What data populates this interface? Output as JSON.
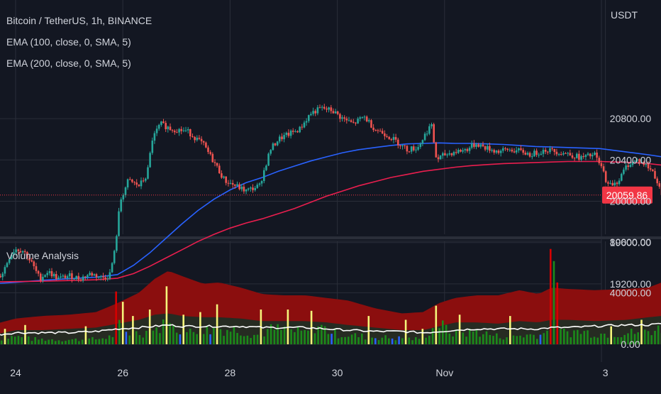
{
  "header": {
    "title": "Bitcoin / TetherUS, 1h, BINANCE",
    "ema100_label": "EMA (100, close, 0, SMA, 5)",
    "ema200_label": "EMA (200, close, 0, SMA, 5)",
    "currency": "USDT"
  },
  "volume_panel": {
    "title": "Volume Analysis"
  },
  "last_price": {
    "value": 20059.86,
    "label": "20059.86",
    "color": "#f23645"
  },
  "colors": {
    "background": "#131722",
    "grid": "#2a2e39",
    "candle_up": "#26a69a",
    "candle_down": "#ef5350",
    "ema100": "#2962ff",
    "ema200": "#e91e4e",
    "volume_green": "#1b8a1b",
    "volume_yellow": "#f5f57a",
    "volume_blue": "#2962ff",
    "volume_red": "#d50000",
    "band_outer": "#8b0e0e",
    "band_inner": "#262b22",
    "volume_average": "#ffffff"
  },
  "chart_data": [
    {
      "type": "candlestick",
      "title": "Bitcoin / TetherUS, 1h, BINANCE",
      "xlabel": "",
      "ylabel": "USDT",
      "x_ticks": [
        "24",
        "26",
        "28",
        "30",
        "Nov",
        "3"
      ],
      "y_ticks": [
        19200,
        19600,
        20000,
        20400,
        20800
      ],
      "y_tick_labels": [
        "19200.00",
        "19600.00",
        "20000.00",
        "20400.00",
        "20800.00"
      ],
      "ylim": [
        19150,
        21100
      ],
      "grid": true,
      "price_path": [
        [
          23.55,
          19190
        ],
        [
          23.75,
          19300
        ],
        [
          23.9,
          19480
        ],
        [
          24.0,
          19540
        ],
        [
          24.15,
          19520
        ],
        [
          24.3,
          19400
        ],
        [
          24.45,
          19250
        ],
        [
          24.6,
          19320
        ],
        [
          24.8,
          19250
        ],
        [
          25.0,
          19280
        ],
        [
          25.2,
          19250
        ],
        [
          25.4,
          19300
        ],
        [
          25.6,
          19260
        ],
        [
          25.75,
          19280
        ],
        [
          25.85,
          19520
        ],
        [
          25.95,
          20000
        ],
        [
          26.1,
          20200
        ],
        [
          26.3,
          20150
        ],
        [
          26.45,
          20250
        ],
        [
          26.55,
          20600
        ],
        [
          26.7,
          20750
        ],
        [
          26.9,
          20700
        ],
        [
          27.2,
          20680
        ],
        [
          27.5,
          20550
        ],
        [
          27.7,
          20380
        ],
        [
          27.9,
          20200
        ],
        [
          28.1,
          20150
        ],
        [
          28.3,
          20100
        ],
        [
          28.55,
          20150
        ],
        [
          28.75,
          20500
        ],
        [
          28.9,
          20600
        ],
        [
          29.1,
          20650
        ],
        [
          29.3,
          20700
        ],
        [
          29.5,
          20850
        ],
        [
          29.7,
          20900
        ],
        [
          29.9,
          20880
        ],
        [
          30.1,
          20800
        ],
        [
          30.3,
          20750
        ],
        [
          30.5,
          20820
        ],
        [
          30.7,
          20700
        ],
        [
          30.9,
          20650
        ],
        [
          31.1,
          20580
        ],
        [
          31.3,
          20500
        ],
        [
          31.5,
          20520
        ],
        [
          31.75,
          20750
        ],
        [
          31.85,
          20400
        ],
        [
          32.0,
          20450
        ],
        [
          32.2,
          20480
        ],
        [
          32.4,
          20500
        ],
        [
          32.6,
          20560
        ],
        [
          32.75,
          20520
        ],
        [
          33.0,
          20480
        ],
        [
          33.2,
          20500
        ],
        [
          33.45,
          20480
        ],
        [
          33.6,
          20450
        ],
        [
          33.9,
          20500
        ],
        [
          34.1,
          20480
        ],
        [
          34.3,
          20460
        ],
        [
          34.55,
          20420
        ],
        [
          34.8,
          20450
        ],
        [
          34.95,
          20300
        ],
        [
          35.05,
          20150
        ],
        [
          35.25,
          20200
        ],
        [
          35.4,
          20350
        ],
        [
          35.6,
          20400
        ],
        [
          35.75,
          20350
        ],
        [
          35.9,
          20280
        ],
        [
          36.05,
          20060
        ]
      ],
      "series": [
        {
          "name": "EMA (100, close, 0, SMA, 5)",
          "color": "#2962ff",
          "x": [
            23.55,
            24.0,
            24.5,
            25.0,
            25.5,
            25.9,
            26.2,
            26.5,
            26.8,
            27.1,
            27.4,
            27.7,
            28.0,
            28.3,
            28.6,
            28.9,
            29.2,
            29.5,
            29.8,
            30.1,
            30.4,
            30.7,
            31.0,
            31.3,
            31.6,
            31.9,
            32.2,
            32.5,
            32.8,
            33.1,
            33.4,
            33.7,
            34.0,
            34.3,
            34.6,
            34.9,
            35.2,
            35.5,
            35.8,
            36.05
          ],
          "y": [
            19200,
            19215,
            19235,
            19250,
            19265,
            19290,
            19380,
            19500,
            19640,
            19780,
            19910,
            20020,
            20110,
            20180,
            20230,
            20290,
            20340,
            20390,
            20430,
            20470,
            20500,
            20520,
            20540,
            20555,
            20560,
            20565,
            20560,
            20560,
            20555,
            20550,
            20540,
            20530,
            20525,
            20520,
            20515,
            20510,
            20490,
            20470,
            20450,
            20430
          ]
        },
        {
          "name": "EMA (200, close, 0, SMA, 5)",
          "color": "#e91e4e",
          "x": [
            23.55,
            24.0,
            24.5,
            25.0,
            25.5,
            25.9,
            26.2,
            26.5,
            26.8,
            27.1,
            27.4,
            27.7,
            28.0,
            28.3,
            28.6,
            28.9,
            29.2,
            29.5,
            29.8,
            30.1,
            30.4,
            30.7,
            31.0,
            31.3,
            31.6,
            31.9,
            32.2,
            32.5,
            32.8,
            33.1,
            33.4,
            33.7,
            34.0,
            34.3,
            34.6,
            34.9,
            35.2,
            35.5,
            35.8,
            36.05
          ],
          "y": [
            19220,
            19222,
            19226,
            19232,
            19240,
            19255,
            19300,
            19370,
            19450,
            19530,
            19610,
            19680,
            19740,
            19790,
            19830,
            19880,
            19930,
            19990,
            20050,
            20100,
            20150,
            20190,
            20230,
            20260,
            20290,
            20310,
            20330,
            20345,
            20355,
            20365,
            20370,
            20375,
            20380,
            20385,
            20385,
            20385,
            20380,
            20375,
            20365,
            20350
          ]
        }
      ],
      "last_value": 20059.86
    },
    {
      "type": "bar",
      "title": "Volume Analysis",
      "x_ticks": [
        "24",
        "26",
        "28",
        "30",
        "Nov",
        "3"
      ],
      "y_ticks": [
        0,
        40000,
        80000
      ],
      "y_tick_labels": [
        "0.00",
        "40000.00",
        "80000.00"
      ],
      "ylim": [
        0,
        80000
      ],
      "grid": true,
      "volume_profile": [
        [
          23.55,
          4000
        ],
        [
          24.0,
          6000
        ],
        [
          24.3,
          4000
        ],
        [
          25.0,
          3500
        ],
        [
          25.5,
          4000
        ],
        [
          25.8,
          6000
        ],
        [
          25.9,
          15000
        ],
        [
          26.1,
          8000
        ],
        [
          26.5,
          10000
        ],
        [
          26.8,
          15000
        ],
        [
          27.2,
          9000
        ],
        [
          27.8,
          12000
        ],
        [
          28.2,
          11000
        ],
        [
          28.5,
          7000
        ],
        [
          28.8,
          12000
        ],
        [
          29.4,
          9000
        ],
        [
          29.6,
          15000
        ],
        [
          30.0,
          8000
        ],
        [
          30.5,
          6000
        ],
        [
          31.0,
          5000
        ],
        [
          31.5,
          4000
        ],
        [
          31.9,
          15000
        ],
        [
          32.2,
          8000
        ],
        [
          32.6,
          10000
        ],
        [
          33.0,
          6000
        ],
        [
          33.5,
          7000
        ],
        [
          33.9,
          8000
        ],
        [
          34.0,
          70000
        ],
        [
          34.1,
          9000
        ],
        [
          34.5,
          10000
        ],
        [
          35.0,
          8000
        ],
        [
          35.5,
          9000
        ],
        [
          36.05,
          12000
        ]
      ],
      "spikes": [
        [
          23.6,
          13000,
          "yellow"
        ],
        [
          23.8,
          12000,
          "yellow"
        ],
        [
          24.2,
          15000,
          "yellow"
        ],
        [
          25.3,
          14000,
          "yellow"
        ],
        [
          25.9,
          41000,
          "red"
        ],
        [
          26.0,
          33000,
          "yellow"
        ],
        [
          26.2,
          22000,
          "yellow"
        ],
        [
          26.5,
          27000,
          "yellow"
        ],
        [
          26.8,
          45000,
          "yellow"
        ],
        [
          27.1,
          23000,
          "yellow"
        ],
        [
          27.45,
          25000,
          "yellow"
        ],
        [
          27.75,
          31000,
          "yellow"
        ],
        [
          28.6,
          27000,
          "yellow"
        ],
        [
          29.1,
          27000,
          "yellow"
        ],
        [
          29.5,
          26000,
          "yellow"
        ],
        [
          30.6,
          22000,
          "yellow"
        ],
        [
          31.3,
          19000,
          "yellow"
        ],
        [
          31.6,
          12000,
          "yellow"
        ],
        [
          31.85,
          30000,
          "yellow"
        ],
        [
          32.3,
          23000,
          "yellow"
        ],
        [
          33.2,
          22000,
          "yellow"
        ],
        [
          34.0,
          74000,
          "red"
        ],
        [
          34.1,
          48000,
          "red"
        ],
        [
          35.1,
          14000,
          "yellow"
        ],
        [
          35.7,
          19000,
          "yellow"
        ]
      ],
      "band_outer": [
        [
          23.55,
          15000
        ],
        [
          24.0,
          20000
        ],
        [
          24.5,
          22000
        ],
        [
          25.0,
          23000
        ],
        [
          25.5,
          25000
        ],
        [
          25.9,
          32000
        ],
        [
          26.3,
          40000
        ],
        [
          26.6,
          51000
        ],
        [
          26.85,
          57000
        ],
        [
          27.1,
          53000
        ],
        [
          27.5,
          47000
        ],
        [
          27.8,
          48000
        ],
        [
          28.2,
          44000
        ],
        [
          28.6,
          39000
        ],
        [
          29.0,
          38000
        ],
        [
          29.4,
          38000
        ],
        [
          29.8,
          36000
        ],
        [
          30.2,
          34000
        ],
        [
          30.7,
          28000
        ],
        [
          31.2,
          24000
        ],
        [
          31.6,
          25000
        ],
        [
          31.9,
          32000
        ],
        [
          32.2,
          36000
        ],
        [
          32.6,
          38000
        ],
        [
          33.0,
          38000
        ],
        [
          33.4,
          42000
        ],
        [
          33.75,
          39000
        ],
        [
          34.0,
          44000
        ],
        [
          34.3,
          43000
        ],
        [
          34.8,
          42000
        ],
        [
          35.4,
          43000
        ],
        [
          35.8,
          44000
        ],
        [
          36.05,
          48000
        ]
      ],
      "band_inner": [
        [
          23.55,
          7000
        ],
        [
          24.0,
          11000
        ],
        [
          24.5,
          11000
        ],
        [
          25.0,
          12000
        ],
        [
          25.5,
          13000
        ],
        [
          25.9,
          16000
        ],
        [
          26.3,
          19000
        ],
        [
          26.6,
          23000
        ],
        [
          26.85,
          24000
        ],
        [
          27.1,
          22000
        ],
        [
          27.5,
          21000
        ],
        [
          27.8,
          21000
        ],
        [
          28.2,
          20000
        ],
        [
          28.6,
          18000
        ],
        [
          29.0,
          18000
        ],
        [
          29.4,
          18000
        ],
        [
          29.8,
          17000
        ],
        [
          30.2,
          15000
        ],
        [
          30.7,
          13000
        ],
        [
          31.2,
          11000
        ],
        [
          31.6,
          11000
        ],
        [
          31.9,
          14000
        ],
        [
          32.2,
          17000
        ],
        [
          32.6,
          17000
        ],
        [
          33.0,
          16000
        ],
        [
          33.4,
          18000
        ],
        [
          33.75,
          17000
        ],
        [
          34.0,
          19000
        ],
        [
          34.3,
          19000
        ],
        [
          34.8,
          18000
        ],
        [
          35.4,
          19000
        ],
        [
          35.8,
          21000
        ],
        [
          36.05,
          22000
        ]
      ],
      "average_line": [
        [
          23.55,
          7000
        ],
        [
          24.0,
          9000
        ],
        [
          24.5,
          9000
        ],
        [
          25.0,
          9000
        ],
        [
          25.5,
          10000
        ],
        [
          25.9,
          12000
        ],
        [
          26.3,
          13000
        ],
        [
          26.6,
          14000
        ],
        [
          26.85,
          15000
        ],
        [
          27.1,
          14000
        ],
        [
          27.5,
          14000
        ],
        [
          27.8,
          14000
        ],
        [
          28.2,
          14000
        ],
        [
          28.6,
          13000
        ],
        [
          29.0,
          13000
        ],
        [
          29.4,
          13000
        ],
        [
          29.8,
          12000
        ],
        [
          30.2,
          11000
        ],
        [
          30.7,
          10000
        ],
        [
          31.2,
          10000
        ],
        [
          31.6,
          9000
        ],
        [
          31.9,
          10000
        ],
        [
          32.2,
          11000
        ],
        [
          32.6,
          12000
        ],
        [
          33.0,
          12000
        ],
        [
          33.4,
          12000
        ],
        [
          33.75,
          12000
        ],
        [
          34.0,
          13000
        ],
        [
          34.3,
          13000
        ],
        [
          34.8,
          14000
        ],
        [
          35.4,
          15000
        ],
        [
          35.8,
          15000
        ],
        [
          36.05,
          16000
        ]
      ]
    }
  ]
}
